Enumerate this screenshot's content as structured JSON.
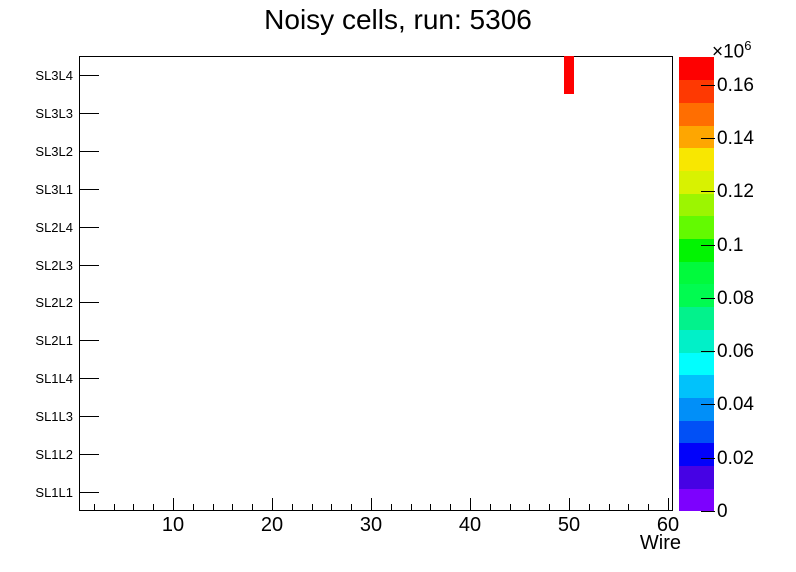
{
  "title": "Noisy cells, run: 5306",
  "chart_data": {
    "type": "heatmap",
    "title": "Noisy cells, run: 5306",
    "xlabel": "Wire",
    "ylabel": "",
    "x_range": [
      0.5,
      60.5
    ],
    "x_major_ticks": [
      10,
      20,
      30,
      40,
      50,
      60
    ],
    "x_minor_step": 2,
    "rows_top_to_bottom": [
      "SL3L4",
      "SL3L3",
      "SL3L2",
      "SL3L1",
      "SL2L4",
      "SL2L3",
      "SL2L2",
      "SL2L1",
      "SL1L4",
      "SL1L3",
      "SL1L2",
      "SL1L1"
    ],
    "cells": [
      {
        "wire": 50,
        "layer": "SL3L4",
        "value": 170000
      }
    ],
    "colorbar": {
      "exponent_base": "×10",
      "exponent_power": "6",
      "z_min": 0,
      "z_max": 170500,
      "tick_values": [
        0,
        20000,
        40000,
        60000,
        80000,
        100000,
        120000,
        140000,
        160000
      ],
      "tick_labels": [
        "0",
        "0.02",
        "0.04",
        "0.06",
        "0.08",
        "0.1",
        "0.12",
        "0.14",
        "0.16"
      ],
      "n_contours": 20,
      "palette_bottom_to_top": [
        "#7d01fe",
        "#4602e4",
        "#0202fa",
        "#0150f6",
        "#018ff8",
        "#01c2fb",
        "#01fefe",
        "#01f0c8",
        "#02f28c",
        "#01fb50",
        "#01fa3c",
        "#02f402",
        "#63fa01",
        "#9cf501",
        "#d8f201",
        "#f8e701",
        "#fea601",
        "#ff6e01",
        "#fe3902",
        "#fe0101"
      ]
    },
    "grid": false,
    "legend": false,
    "background_color": "#ffffff",
    "frame_color": "#000000"
  }
}
